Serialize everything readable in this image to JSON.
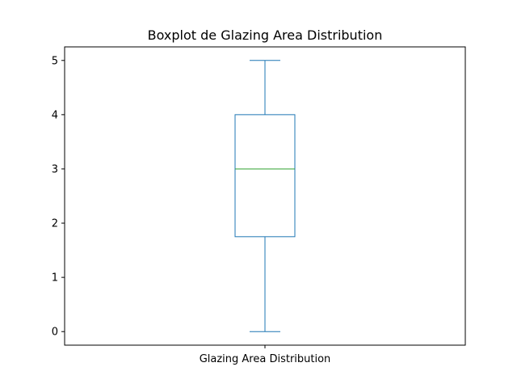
{
  "chart_data": {
    "type": "boxplot",
    "title": "Boxplot de Glazing Area Distribution",
    "categories": [
      "Glazing Area Distribution"
    ],
    "boxes": [
      {
        "category": "Glazing Area Distribution",
        "whisker_low": 0,
        "q1": 1.75,
        "median": 3,
        "q3": 4,
        "whisker_high": 5
      }
    ],
    "y_ticks": [
      "0",
      "1",
      "2",
      "3",
      "4",
      "5"
    ],
    "ylim": [
      -0.25,
      5.25
    ],
    "xlabel": "",
    "ylabel": "",
    "grid": false,
    "colors": {
      "box": "#1f77b4",
      "median": "#2ca02c",
      "axes": "#000000"
    }
  }
}
